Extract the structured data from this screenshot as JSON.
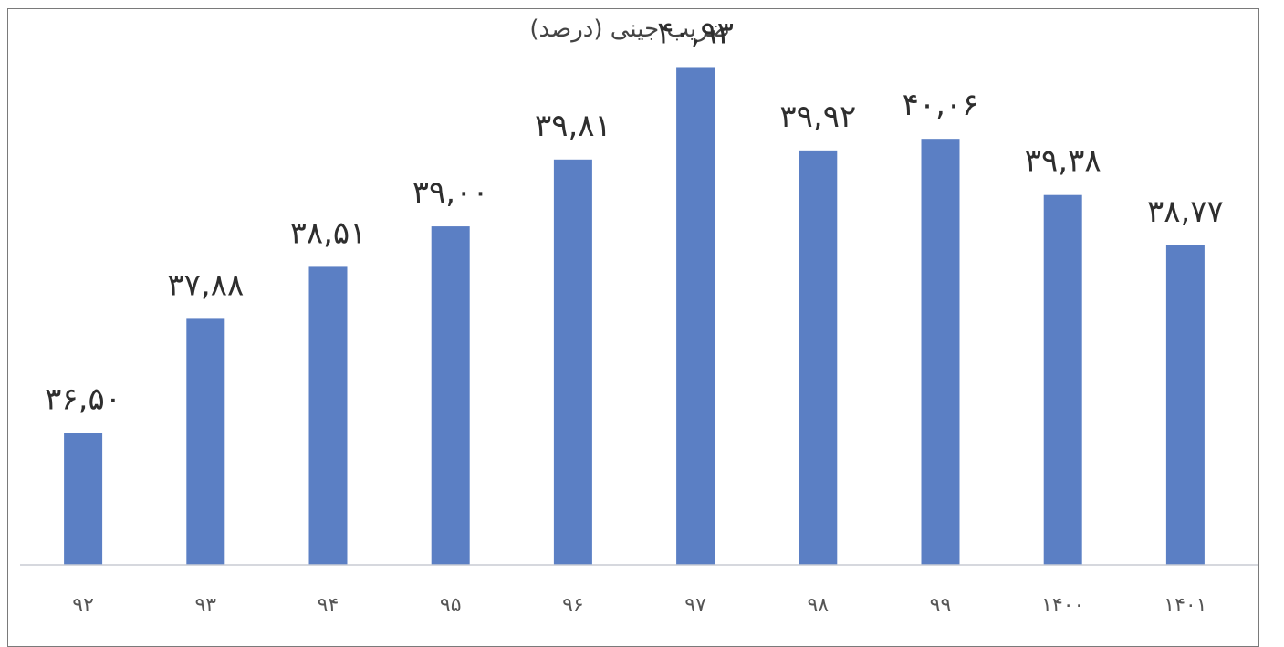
{
  "chart_data": {
    "type": "bar",
    "title": "ضریب جینی (درصد)",
    "categories": [
      "۹۲",
      "۹۳",
      "۹۴",
      "۹۵",
      "۹۶",
      "۹۷",
      "۹۸",
      "۹۹",
      "۱۴۰۰",
      "۱۴۰۱"
    ],
    "values": [
      36.5,
      37.88,
      38.51,
      39.0,
      39.81,
      40.93,
      39.92,
      40.06,
      39.38,
      38.77
    ],
    "data_labels": [
      "۳۶,۵۰",
      "۳۷,۸۸",
      "۳۸,۵۱",
      "۳۹,۰۰",
      "۳۹,۸۱",
      "۴۰,۹۳",
      "۳۹,۹۲",
      "۴۰,۰۶",
      "۳۹,۳۸",
      "۳۸,۷۷"
    ],
    "xlabel": "",
    "ylabel": "",
    "ylim": [
      34.9,
      41.3
    ],
    "grid": false,
    "legend": "none",
    "bar_color": "#5b7fc4",
    "axis_color": "#c8ccd4"
  }
}
